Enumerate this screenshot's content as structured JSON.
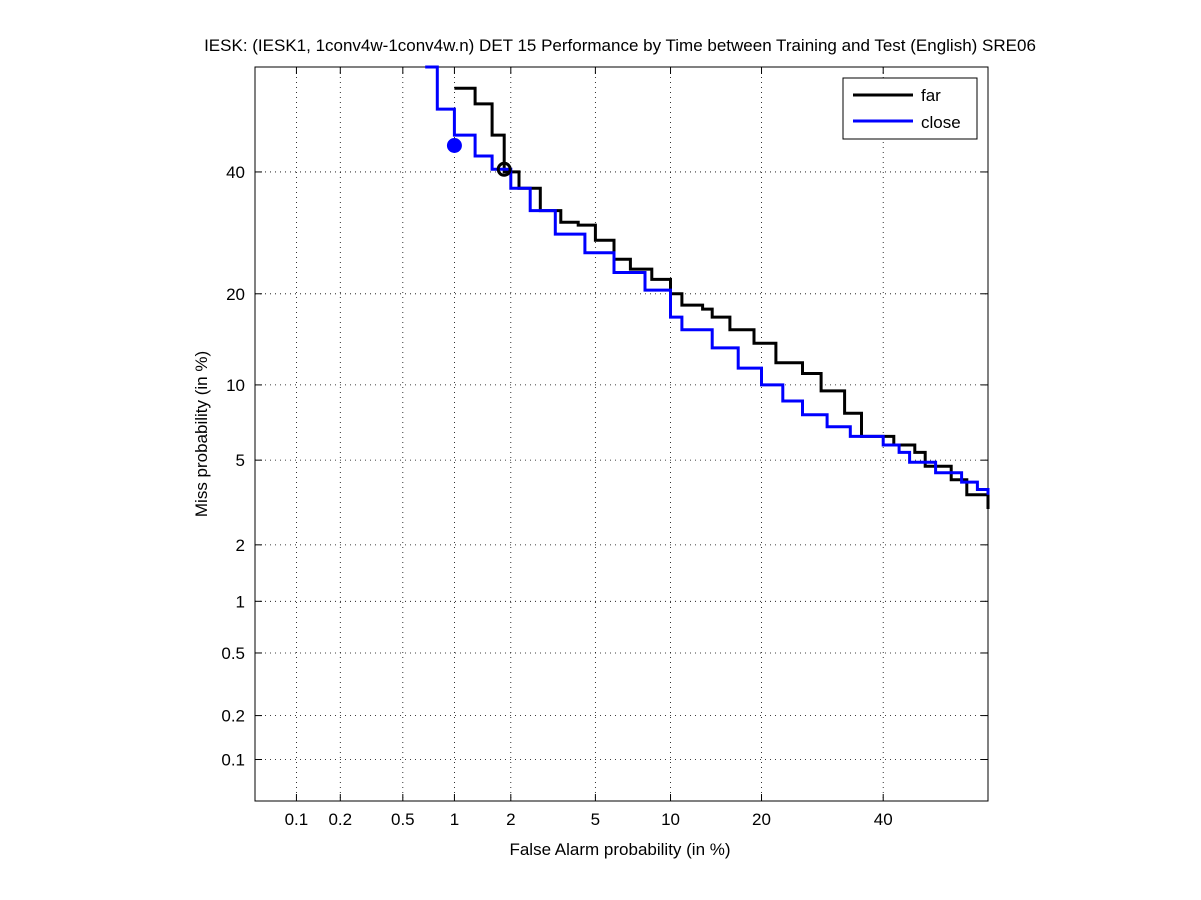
{
  "chart_data": {
    "type": "line",
    "title": "IESK: (IESK1, 1conv4w-1conv4w.n) DET 15 Performance by Time between Training and Test (English) SRE06",
    "xlabel": "False Alarm probability (in %)",
    "ylabel": "Miss probability (in %)",
    "x_scale": "probit",
    "y_scale": "probit",
    "xlim": [
      0.05,
      60
    ],
    "ylim": [
      0.05,
      60
    ],
    "xticks": [
      0.1,
      0.2,
      0.5,
      1,
      2,
      5,
      10,
      20,
      40
    ],
    "xtick_labels": [
      "0.1",
      "0.2",
      "0.5",
      "1",
      "2",
      "5",
      "10",
      "20",
      "40"
    ],
    "yticks": [
      0.1,
      0.2,
      0.5,
      1,
      2,
      5,
      10,
      20,
      40
    ],
    "ytick_labels": [
      "0.1",
      "0.2",
      "0.5",
      "1",
      "2",
      "5",
      "10",
      "20",
      "40"
    ],
    "grid": true,
    "legend_position": "top-right",
    "series": [
      {
        "name": "far",
        "color": "#000000",
        "points": [
          [
            1.0,
            56
          ],
          [
            1.3,
            53
          ],
          [
            1.6,
            47
          ],
          [
            1.85,
            40
          ],
          [
            2.2,
            37
          ],
          [
            2.8,
            33
          ],
          [
            3.5,
            31
          ],
          [
            4.2,
            30.5
          ],
          [
            5,
            28
          ],
          [
            6,
            25
          ],
          [
            7,
            23.5
          ],
          [
            8.5,
            22
          ],
          [
            10,
            20
          ],
          [
            11,
            18.5
          ],
          [
            13,
            18
          ],
          [
            14,
            17
          ],
          [
            16,
            15.5
          ],
          [
            19,
            14
          ],
          [
            22,
            12
          ],
          [
            26,
            11
          ],
          [
            29,
            9.5
          ],
          [
            33,
            7.8
          ],
          [
            36,
            6.3
          ],
          [
            42,
            5.8
          ],
          [
            46,
            5.4
          ],
          [
            48,
            4.7
          ],
          [
            53,
            4.1
          ],
          [
            56,
            3.5
          ],
          [
            60,
            3.0
          ]
        ]
      },
      {
        "name": "close",
        "color": "#0000ff",
        "points": [
          [
            0.68,
            60
          ],
          [
            0.8,
            52
          ],
          [
            1.0,
            47
          ],
          [
            1.3,
            43
          ],
          [
            1.6,
            40.5
          ],
          [
            2.0,
            37
          ],
          [
            2.5,
            33
          ],
          [
            3.3,
            29
          ],
          [
            4.5,
            26
          ],
          [
            6,
            23
          ],
          [
            8,
            20.5
          ],
          [
            10,
            17
          ],
          [
            11,
            15.5
          ],
          [
            14,
            13.5
          ],
          [
            17,
            11.5
          ],
          [
            20,
            10
          ],
          [
            23,
            8.7
          ],
          [
            26,
            7.7
          ],
          [
            30,
            6.9
          ],
          [
            34,
            6.3
          ],
          [
            40,
            5.8
          ],
          [
            43,
            5.4
          ],
          [
            45,
            4.9
          ],
          [
            50,
            4.4
          ],
          [
            55,
            4.0
          ],
          [
            58,
            3.7
          ],
          [
            60,
            3.5
          ]
        ]
      }
    ],
    "markers": [
      {
        "series": "far",
        "x": 1.85,
        "y": 40.5,
        "filled": false
      },
      {
        "series": "close",
        "x": 1.0,
        "y": 45,
        "filled": true
      }
    ]
  }
}
